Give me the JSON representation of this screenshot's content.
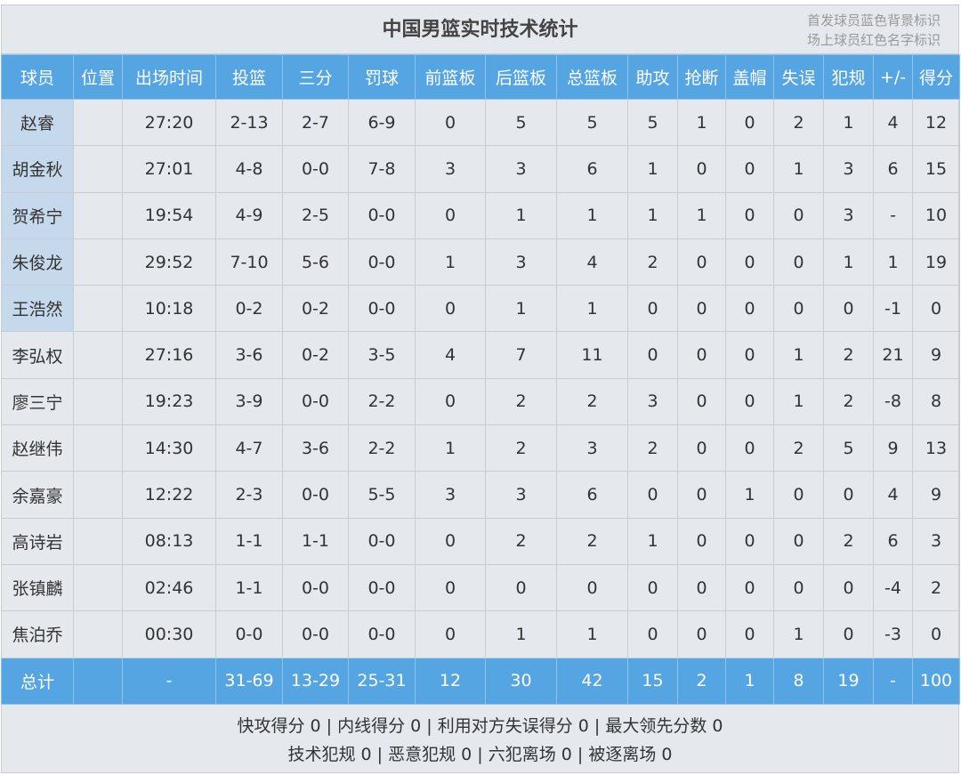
{
  "title": "中国男篮实时技术统计",
  "legend": [
    "首发球员蓝色背景标识",
    "场上球员红色名字标识"
  ],
  "colors": {
    "header_bg": "#56a5e3",
    "starter_bg": "#c6d8eb",
    "panel_bg": "#e5e9ed"
  },
  "columns": [
    "球员",
    "位置",
    "出场时间",
    "投篮",
    "三分",
    "罚球",
    "前篮板",
    "后篮板",
    "总篮板",
    "助攻",
    "抢断",
    "盖帽",
    "失误",
    "犯规",
    "+/-",
    "得分"
  ],
  "players": [
    {
      "starter": true,
      "cells": [
        "赵睿",
        "",
        "27:20",
        "2-13",
        "2-7",
        "6-9",
        "0",
        "5",
        "5",
        "5",
        "1",
        "0",
        "2",
        "1",
        "4",
        "12"
      ]
    },
    {
      "starter": true,
      "cells": [
        "胡金秋",
        "",
        "27:01",
        "4-8",
        "0-0",
        "7-8",
        "3",
        "3",
        "6",
        "1",
        "0",
        "0",
        "1",
        "3",
        "6",
        "15"
      ]
    },
    {
      "starter": true,
      "cells": [
        "贺希宁",
        "",
        "19:54",
        "4-9",
        "2-5",
        "0-0",
        "0",
        "1",
        "1",
        "1",
        "1",
        "0",
        "0",
        "3",
        "-",
        "10"
      ]
    },
    {
      "starter": true,
      "cells": [
        "朱俊龙",
        "",
        "29:52",
        "7-10",
        "5-6",
        "0-0",
        "1",
        "3",
        "4",
        "2",
        "0",
        "0",
        "0",
        "1",
        "1",
        "19"
      ]
    },
    {
      "starter": true,
      "cells": [
        "王浩然",
        "",
        "10:18",
        "0-2",
        "0-2",
        "0-0",
        "0",
        "1",
        "1",
        "0",
        "0",
        "0",
        "0",
        "0",
        "-1",
        "0"
      ]
    },
    {
      "starter": false,
      "cells": [
        "李弘权",
        "",
        "27:16",
        "3-6",
        "0-2",
        "3-5",
        "4",
        "7",
        "11",
        "0",
        "0",
        "0",
        "1",
        "2",
        "21",
        "9"
      ]
    },
    {
      "starter": false,
      "cells": [
        "廖三宁",
        "",
        "19:23",
        "3-9",
        "0-0",
        "2-2",
        "0",
        "2",
        "2",
        "3",
        "0",
        "0",
        "1",
        "2",
        "-8",
        "8"
      ]
    },
    {
      "starter": false,
      "cells": [
        "赵继伟",
        "",
        "14:30",
        "4-7",
        "3-6",
        "2-2",
        "1",
        "2",
        "3",
        "2",
        "0",
        "0",
        "2",
        "5",
        "9",
        "13"
      ]
    },
    {
      "starter": false,
      "cells": [
        "余嘉豪",
        "",
        "12:22",
        "2-3",
        "0-0",
        "5-5",
        "3",
        "3",
        "6",
        "0",
        "0",
        "1",
        "0",
        "0",
        "4",
        "9"
      ]
    },
    {
      "starter": false,
      "cells": [
        "高诗岩",
        "",
        "08:13",
        "1-1",
        "1-1",
        "0-0",
        "0",
        "2",
        "2",
        "1",
        "0",
        "0",
        "0",
        "2",
        "6",
        "3"
      ]
    },
    {
      "starter": false,
      "cells": [
        "张镇麟",
        "",
        "02:46",
        "1-1",
        "0-0",
        "0-0",
        "0",
        "0",
        "0",
        "0",
        "0",
        "0",
        "0",
        "0",
        "-4",
        "2"
      ]
    },
    {
      "starter": false,
      "cells": [
        "焦泊乔",
        "",
        "00:30",
        "0-0",
        "0-0",
        "0-0",
        "0",
        "1",
        "1",
        "0",
        "0",
        "0",
        "1",
        "0",
        "-3",
        "0"
      ]
    }
  ],
  "totals": [
    "总计",
    "",
    "-",
    "31-69",
    "13-29",
    "25-31",
    "12",
    "30",
    "42",
    "15",
    "2",
    "1",
    "8",
    "19",
    "-",
    "100"
  ],
  "footer": [
    "快攻得分 0 | 内线得分 0 | 利用对方失误得分 0 | 最大领先分数 0",
    "技术犯规 0 | 恶意犯规 0 | 六犯离场 0 | 被逐离场 0"
  ]
}
